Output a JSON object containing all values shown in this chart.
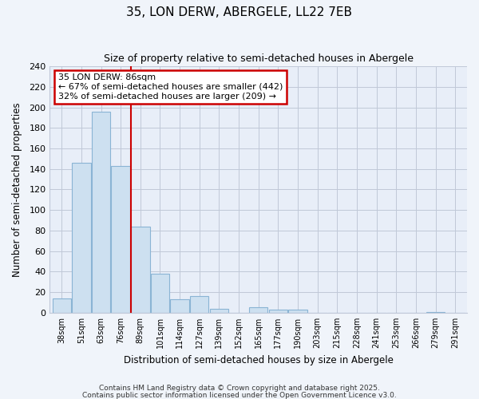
{
  "title": "35, LON DERW, ABERGELE, LL22 7EB",
  "subtitle": "Size of property relative to semi-detached houses in Abergele",
  "xlabel": "Distribution of semi-detached houses by size in Abergele",
  "ylabel": "Number of semi-detached properties",
  "bar_color": "#cde0f0",
  "bar_edge_color": "#8ab4d4",
  "bins": [
    "38sqm",
    "51sqm",
    "63sqm",
    "76sqm",
    "89sqm",
    "101sqm",
    "114sqm",
    "127sqm",
    "139sqm",
    "152sqm",
    "165sqm",
    "177sqm",
    "190sqm",
    "203sqm",
    "215sqm",
    "228sqm",
    "241sqm",
    "253sqm",
    "266sqm",
    "279sqm",
    "291sqm"
  ],
  "values": [
    14,
    146,
    196,
    143,
    84,
    38,
    13,
    16,
    4,
    0,
    5,
    3,
    3,
    0,
    0,
    0,
    0,
    0,
    0,
    1,
    0
  ],
  "annotation_title": "35 LON DERW: 86sqm",
  "annotation_line1": "← 67% of semi-detached houses are smaller (442)",
  "annotation_line2": "32% of semi-detached houses are larger (209) →",
  "vline_color": "#cc0000",
  "annotation_box_edge_color": "#cc0000",
  "ylim": [
    0,
    240
  ],
  "yticks": [
    0,
    20,
    40,
    60,
    80,
    100,
    120,
    140,
    160,
    180,
    200,
    220,
    240
  ],
  "footer1": "Contains HM Land Registry data © Crown copyright and database right 2025.",
  "footer2": "Contains public sector information licensed under the Open Government Licence v3.0.",
  "background_color": "#f0f4fa",
  "plot_bg_color": "#e8eef8",
  "grid_color": "#c0c8d8"
}
